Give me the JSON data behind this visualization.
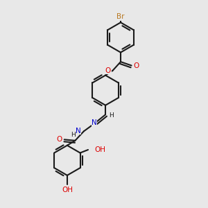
{
  "bg_color": "#e8e8e8",
  "bond_color": "#1a1a1a",
  "atom_colors": {
    "Br": "#b87820",
    "O": "#dd0000",
    "N": "#0000cc",
    "C": "#1a1a1a",
    "H": "#1a1a1a"
  },
  "figsize": [
    3.0,
    3.0
  ],
  "dpi": 100
}
